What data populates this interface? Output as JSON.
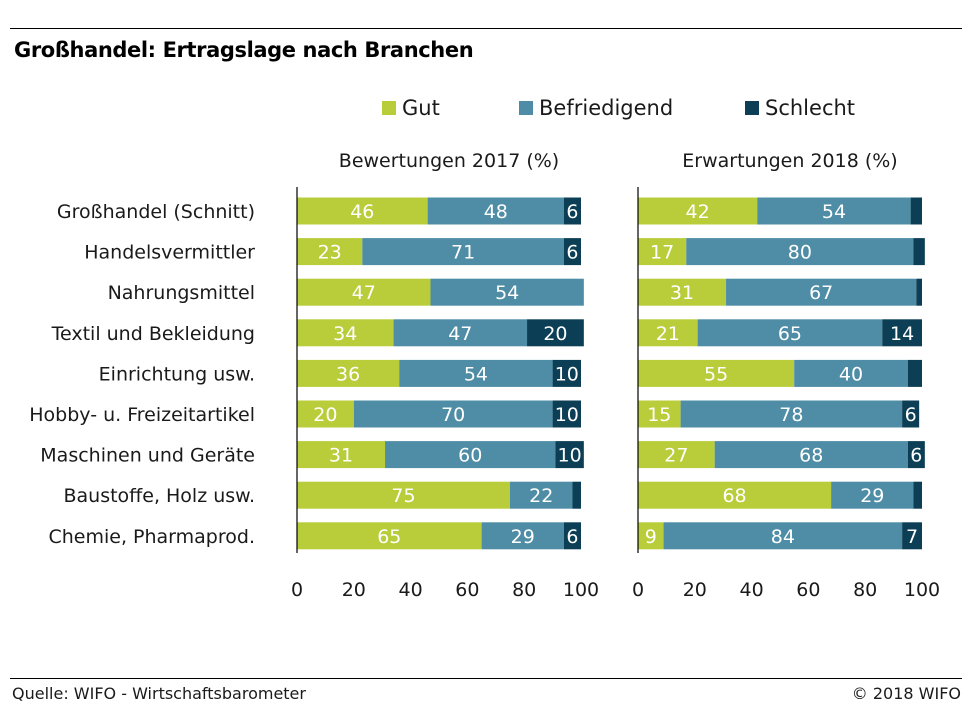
{
  "title": "Großhandel: Ertragslage nach Branchen",
  "footer": {
    "source": "Quelle: WIFO - Wirtschaftsbarometer",
    "copyright": "© 2018 WIFO"
  },
  "colors": {
    "gut": "#b9cc3a",
    "befriedigend": "#4e8da5",
    "schlecht": "#0c3f55"
  },
  "chart_data": {
    "type": "bar",
    "orientation": "horizontal",
    "stacked": true,
    "categories": [
      "Großhandel (Schnitt)",
      "Handelsvermittler",
      "Nahrungsmittel",
      "Textil und Bekleidung",
      "Einrichtung usw.",
      "Hobby- u. Freizeitartikel",
      "Maschinen und Geräte",
      "Baustoffe, Holz usw.",
      "Chemie, Pharmaprod."
    ],
    "legend": [
      "Gut",
      "Befriedigend",
      "Schlecht"
    ],
    "legend_position": "top",
    "xlim": [
      0,
      100
    ],
    "xticks": [
      "0",
      "20",
      "40",
      "60",
      "80",
      "100"
    ],
    "panels": [
      {
        "title": "Bewertungen 2017 (%)",
        "series": [
          {
            "name": "Gut",
            "values": [
              46,
              23,
              47,
              34,
              36,
              20,
              31,
              75,
              65
            ],
            "labels": [
              "46",
              "23",
              "47",
              "34",
              "36",
              "20",
              "31",
              "75",
              "65"
            ]
          },
          {
            "name": "Befriedigend",
            "values": [
              48,
              71,
              54,
              47,
              54,
              70,
              60,
              22,
              29
            ],
            "labels": [
              "48",
              "71",
              "54",
              "47",
              "54",
              "70",
              "60",
              "22",
              "29"
            ]
          },
          {
            "name": "Schlecht",
            "values": [
              6,
              6,
              0,
              20,
              10,
              10,
              10,
              3,
              6
            ],
            "labels": [
              "6",
              "6",
              "",
              "20",
              "10",
              "10",
              "10",
              "",
              "6"
            ]
          }
        ]
      },
      {
        "title": "Erwartungen 2018 (%)",
        "series": [
          {
            "name": "Gut",
            "values": [
              42,
              17,
              31,
              21,
              55,
              15,
              27,
              68,
              9
            ],
            "labels": [
              "42",
              "17",
              "31",
              "21",
              "55",
              "15",
              "27",
              "68",
              "9"
            ]
          },
          {
            "name": "Befriedigend",
            "values": [
              54,
              80,
              67,
              65,
              40,
              78,
              68,
              29,
              84
            ],
            "labels": [
              "54",
              "80",
              "67",
              "65",
              "40",
              "78",
              "68",
              "29",
              "84"
            ]
          },
          {
            "name": "Schlecht",
            "values": [
              4,
              4,
              2,
              14,
              5,
              6,
              6,
              3,
              7
            ],
            "labels": [
              "",
              "",
              "",
              "14",
              "",
              "6",
              "6",
              "",
              "7"
            ]
          }
        ]
      }
    ]
  }
}
